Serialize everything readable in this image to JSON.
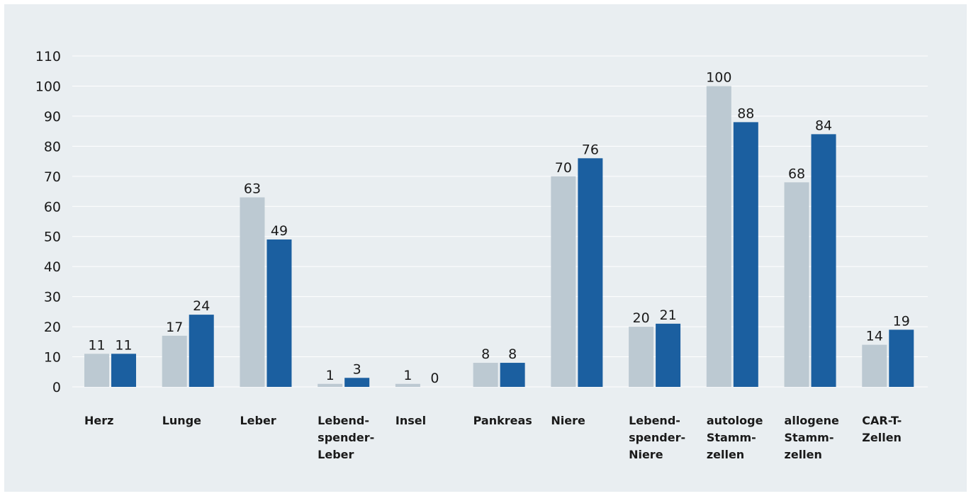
{
  "chart_data": {
    "type": "bar",
    "categories": [
      [
        "Herz"
      ],
      [
        "Lunge"
      ],
      [
        "Leber"
      ],
      [
        "Lebend-",
        "spender-",
        "Leber"
      ],
      [
        "Insel"
      ],
      [
        "Pankreas"
      ],
      [
        "Niere"
      ],
      [
        "Lebend-",
        "spender-",
        "Niere"
      ],
      [
        "autologe",
        "Stamm-",
        "zellen"
      ],
      [
        "allogene",
        "Stamm-",
        "zellen"
      ],
      [
        "CAR-T-",
        "Zellen"
      ]
    ],
    "series": [
      {
        "values": [
          11,
          17,
          63,
          1,
          1,
          8,
          70,
          20,
          100,
          68,
          14
        ],
        "color": "#bcc9d2"
      },
      {
        "values": [
          11,
          24,
          49,
          3,
          0,
          8,
          76,
          21,
          88,
          84,
          19
        ],
        "color": "#1b5fa0"
      }
    ],
    "ylim": [
      0,
      110
    ],
    "yticks": [
      0,
      10,
      20,
      30,
      40,
      50,
      60,
      70,
      80,
      90,
      100,
      110
    ],
    "grid": true,
    "title": "",
    "xlabel": "",
    "ylabel": ""
  },
  "colors": {
    "background": "#e9eef1",
    "grid": "#ffffff",
    "text": "#1a1a1a"
  }
}
